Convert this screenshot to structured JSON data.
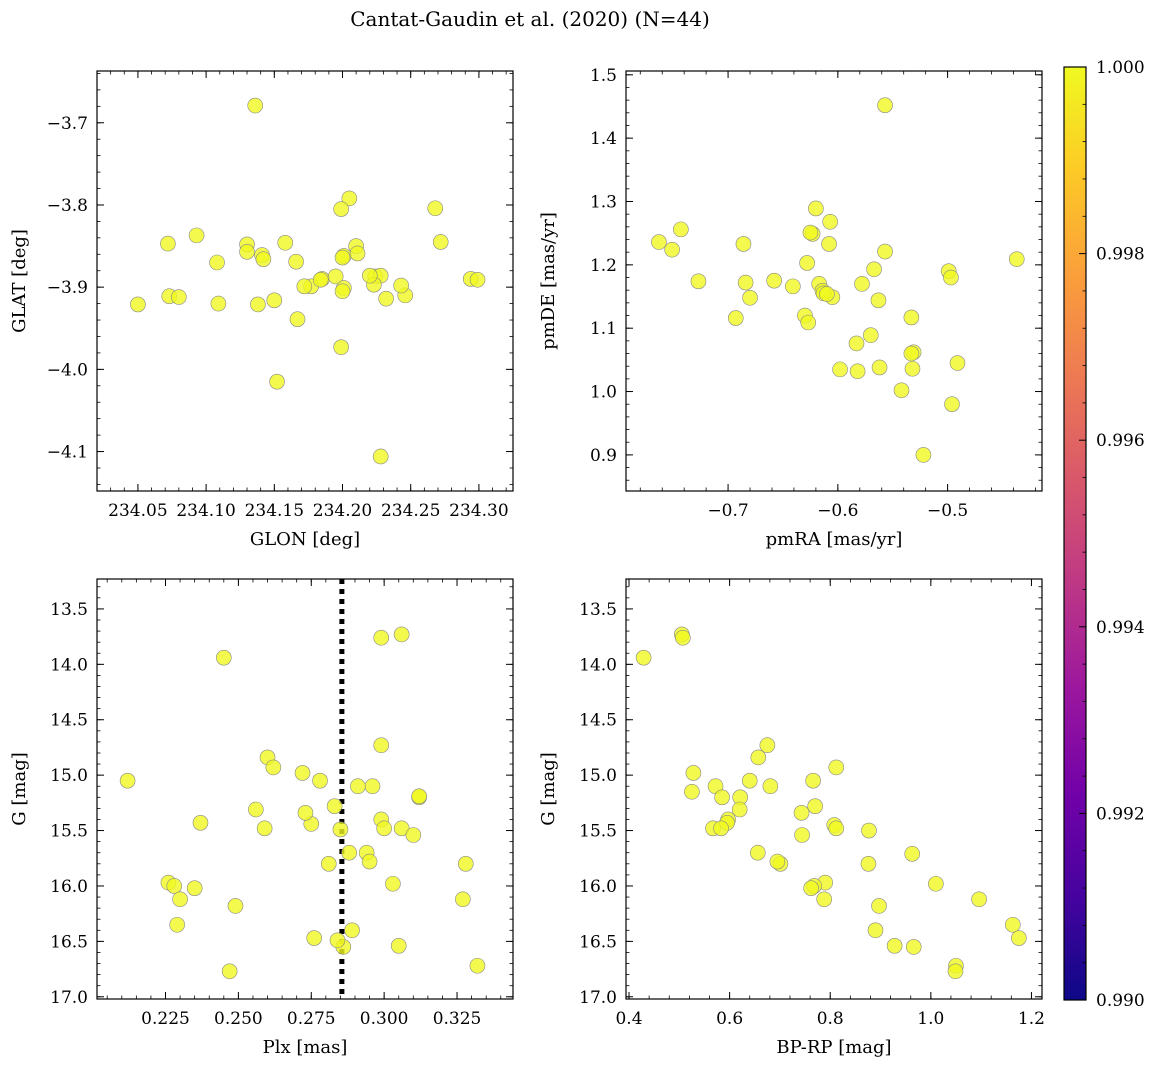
{
  "figure": {
    "title": "Cantat-Gaudin et al. (2020) (N=44)",
    "marker_color": "#f0f921",
    "marker_edge": "#888888",
    "marker_opacity": 0.8
  },
  "colorbar": {
    "vmin": 0.99,
    "vmax": 1.0,
    "ticks": [
      "0.990",
      "0.992",
      "0.994",
      "0.996",
      "0.998",
      "1.000"
    ],
    "colormap": "plasma",
    "stops": [
      "#0d0887",
      "#46039f",
      "#7201a8",
      "#9c179e",
      "#bd3786",
      "#d8576b",
      "#ed7953",
      "#fb9f3a",
      "#fdca26",
      "#f0f921"
    ]
  },
  "chart_data": [
    {
      "type": "scatter",
      "xlabel": "GLON [deg]",
      "ylabel": "GLAT [deg]",
      "xlim": [
        234.02,
        234.325
      ],
      "ylim": [
        -4.148,
        -3.637
      ],
      "invert_y": false,
      "xticks": [
        234.05,
        234.1,
        234.15,
        234.2,
        234.25,
        234.3
      ],
      "xtick_labels": [
        "234.05",
        "234.10",
        "234.15",
        "234.20",
        "234.25",
        "234.30"
      ],
      "yticks": [
        -3.7,
        -3.8,
        -3.9,
        -4.0,
        -4.1
      ],
      "ytick_labels": [
        "−3.7",
        "−3.8",
        "−3.9",
        "−4.0",
        "−4.1"
      ],
      "x": [
        234.136,
        234.205,
        234.199,
        234.268,
        234.093,
        234.072,
        234.13,
        234.158,
        234.185,
        234.21,
        234.13,
        234.224,
        234.272,
        234.201,
        234.141,
        234.211,
        234.142,
        234.108,
        234.166,
        234.228,
        234.223,
        234.195,
        234.201,
        234.22,
        234.246,
        234.177,
        234.172,
        234.184,
        234.294,
        234.299,
        234.2,
        234.243,
        234.232,
        234.073,
        234.08,
        234.109,
        234.05,
        234.138,
        234.15,
        234.199,
        234.167,
        234.2,
        234.152,
        234.228
      ],
      "y": [
        -3.679,
        -3.792,
        -3.805,
        -3.804,
        -3.837,
        -3.847,
        -3.848,
        -3.846,
        -3.89,
        -3.85,
        -3.857,
        -3.887,
        -3.845,
        -3.862,
        -3.861,
        -3.859,
        -3.866,
        -3.87,
        -3.869,
        -3.886,
        -3.897,
        -3.887,
        -3.901,
        -3.886,
        -3.91,
        -3.899,
        -3.899,
        -3.891,
        -3.89,
        -3.891,
        -3.905,
        -3.898,
        -3.914,
        -3.911,
        -3.912,
        -3.92,
        -3.921,
        -3.921,
        -3.916,
        -3.973,
        -3.939,
        -3.864,
        -4.015,
        -4.106
      ],
      "vline": null
    },
    {
      "type": "scatter",
      "xlabel": "pmRA [mas/yr]",
      "ylabel": "pmDE [mas/yr]",
      "xlim": [
        -0.793,
        -0.414
      ],
      "ylim": [
        0.843,
        1.506
      ],
      "invert_y": false,
      "xticks": [
        -0.7,
        -0.6,
        -0.5
      ],
      "xtick_labels": [
        "−0.7",
        "−0.6",
        "−0.5"
      ],
      "yticks": [
        0.9,
        1.0,
        1.1,
        1.2,
        1.3,
        1.4,
        1.5
      ],
      "ytick_labels": [
        "0.9",
        "1.0",
        "1.1",
        "1.2",
        "1.3",
        "1.4",
        "1.5"
      ],
      "x": [
        -0.557,
        -0.62,
        -0.607,
        -0.743,
        -0.763,
        -0.751,
        -0.686,
        -0.623,
        -0.608,
        -0.625,
        -0.557,
        -0.437,
        -0.628,
        -0.567,
        -0.499,
        -0.727,
        -0.658,
        -0.684,
        -0.641,
        -0.617,
        -0.614,
        -0.605,
        -0.497,
        -0.68,
        -0.563,
        -0.578,
        -0.613,
        -0.693,
        -0.533,
        -0.63,
        -0.627,
        -0.583,
        -0.57,
        -0.531,
        -0.533,
        -0.491,
        -0.562,
        -0.532,
        -0.598,
        -0.582,
        -0.542,
        -0.496,
        -0.522,
        -0.61
      ],
      "y": [
        1.452,
        1.289,
        1.268,
        1.256,
        1.236,
        1.224,
        1.233,
        1.249,
        1.233,
        1.251,
        1.221,
        1.209,
        1.203,
        1.193,
        1.19,
        1.174,
        1.175,
        1.172,
        1.166,
        1.17,
        1.159,
        1.149,
        1.18,
        1.148,
        1.144,
        1.17,
        1.155,
        1.116,
        1.117,
        1.12,
        1.109,
        1.076,
        1.089,
        1.062,
        1.06,
        1.045,
        1.038,
        1.036,
        1.035,
        1.032,
        1.002,
        0.98,
        0.9,
        1.154
      ]
    },
    {
      "type": "scatter",
      "xlabel": "Plx [mas]",
      "ylabel": "G [mag]",
      "xlim": [
        0.2015,
        0.3442
      ],
      "ylim": [
        17.02,
        13.23
      ],
      "invert_y": true,
      "xticks": [
        0.225,
        0.25,
        0.275,
        0.3,
        0.325
      ],
      "xtick_labels": [
        "0.225",
        "0.250",
        "0.275",
        "0.300",
        "0.325"
      ],
      "yticks": [
        13.5,
        14.0,
        14.5,
        15.0,
        15.5,
        16.0,
        16.5,
        17.0
      ],
      "ytick_labels": [
        "13.5",
        "14.0",
        "14.5",
        "15.0",
        "15.5",
        "16.0",
        "16.5",
        "17.0"
      ],
      "x": [
        0.306,
        0.299,
        0.245,
        0.299,
        0.26,
        0.262,
        0.212,
        0.272,
        0.278,
        0.283,
        0.296,
        0.312,
        0.312,
        0.237,
        0.256,
        0.259,
        0.275,
        0.273,
        0.299,
        0.3,
        0.306,
        0.285,
        0.31,
        0.288,
        0.294,
        0.295,
        0.281,
        0.328,
        0.226,
        0.228,
        0.235,
        0.303,
        0.23,
        0.327,
        0.249,
        0.229,
        0.289,
        0.276,
        0.286,
        0.305,
        0.247,
        0.332,
        0.284,
        0.291
      ],
      "y": [
        13.73,
        13.76,
        13.94,
        14.73,
        14.84,
        14.93,
        15.05,
        14.98,
        15.05,
        15.28,
        15.1,
        15.2,
        15.19,
        15.43,
        15.31,
        15.48,
        15.44,
        15.34,
        15.4,
        15.48,
        15.48,
        15.49,
        15.54,
        15.7,
        15.7,
        15.78,
        15.8,
        15.8,
        15.97,
        16.0,
        16.02,
        15.98,
        16.12,
        16.12,
        16.18,
        16.35,
        16.4,
        16.47,
        16.55,
        16.54,
        16.77,
        16.72,
        16.49,
        15.1
      ],
      "vline": 0.2855
    },
    {
      "type": "scatter",
      "xlabel": "BP-RP [mag]",
      "ylabel": "G [mag]",
      "xlim": [
        0.394,
        1.221
      ],
      "ylim": [
        17.02,
        13.23
      ],
      "invert_y": true,
      "xticks": [
        0.4,
        0.6,
        0.8,
        1.0,
        1.2
      ],
      "xtick_labels": [
        "0.4",
        "0.6",
        "0.8",
        "1.0",
        "1.2"
      ],
      "yticks": [
        13.5,
        14.0,
        14.5,
        15.0,
        15.5,
        16.0,
        16.5,
        17.0
      ],
      "ytick_labels": [
        "13.5",
        "14.0",
        "14.5",
        "15.0",
        "15.5",
        "16.0",
        "16.5",
        "17.0"
      ],
      "x": [
        0.505,
        0.507,
        0.429,
        0.675,
        0.657,
        0.812,
        0.528,
        0.64,
        0.766,
        0.572,
        0.525,
        0.621,
        0.585,
        0.597,
        0.62,
        0.681,
        0.595,
        0.77,
        0.743,
        0.808,
        0.812,
        0.567,
        0.744,
        0.583,
        0.877,
        0.963,
        0.656,
        0.701,
        0.876,
        0.695,
        1.01,
        0.79,
        0.768,
        0.762,
        0.788,
        1.096,
        0.897,
        1.163,
        0.89,
        1.175,
        1.05,
        0.928,
        0.966,
        1.049
      ],
      "y": [
        13.73,
        13.76,
        13.94,
        14.73,
        14.84,
        14.93,
        14.98,
        15.05,
        15.05,
        15.1,
        15.15,
        15.2,
        15.2,
        15.4,
        15.31,
        15.1,
        15.43,
        15.28,
        15.34,
        15.45,
        15.48,
        15.48,
        15.54,
        15.48,
        15.5,
        15.71,
        15.7,
        15.8,
        15.8,
        15.78,
        15.98,
        15.97,
        16.0,
        16.02,
        16.12,
        16.12,
        16.18,
        16.35,
        16.4,
        16.47,
        16.72,
        16.54,
        16.55,
        16.77
      ],
      "vline": null
    }
  ]
}
